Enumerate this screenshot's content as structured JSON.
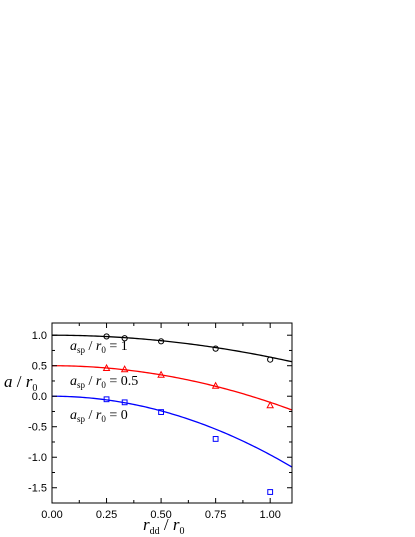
{
  "chart_data": {
    "type": "scatter",
    "x_axis": {
      "label_main": "r",
      "label_sub": "dd",
      "label_sep": " / ",
      "label_den": "r",
      "label_den_sub": "0",
      "range": [
        0.0,
        1.1
      ],
      "ticks": [
        "0.00",
        "0.25",
        "0.50",
        "0.75",
        "1.00"
      ]
    },
    "y_axis": {
      "label_main": "a",
      "label_sep": " / ",
      "label_den": "r",
      "label_den_sub": "0",
      "range": [
        -1.75,
        1.2
      ],
      "ticks": [
        "1.0",
        "0.5",
        "0.0",
        "-0.5",
        "-1.0",
        "-1.5"
      ]
    },
    "grid": false,
    "series": [
      {
        "name": "a_sp / r_0 = 1",
        "color": "#000000",
        "marker": "circle",
        "x": [
          0.25,
          0.333,
          0.5,
          0.75,
          1.0
        ],
        "y": [
          0.98,
          0.95,
          0.9,
          0.78,
          0.6
        ],
        "fit_coeffs": [
          1.0,
          0.0,
          -0.36
        ]
      },
      {
        "name": "a_sp / r_0 = 0.5",
        "color": "#ff0000",
        "marker": "triangle",
        "x": [
          0.25,
          0.333,
          0.5,
          0.75,
          1.0
        ],
        "y": [
          0.46,
          0.44,
          0.35,
          0.17,
          -0.15
        ],
        "fit_coeffs": [
          0.5,
          0.0,
          -0.6
        ]
      },
      {
        "name": "a_sp / r_0 = 0",
        "color": "#0000ff",
        "marker": "square",
        "x": [
          0.25,
          0.333,
          0.5,
          0.75,
          1.0
        ],
        "y": [
          -0.05,
          -0.1,
          -0.26,
          -0.7,
          -1.57
        ],
        "fit_coeffs": [
          0.0,
          0.0,
          -0.96
        ]
      }
    ],
    "annotations": [
      {
        "var": "a",
        "sub": "sp",
        "sep": " / ",
        "den": "r",
        "den_sub": "0",
        "eq": " = 1"
      },
      {
        "var": "a",
        "sub": "sp",
        "sep": " / ",
        "den": "r",
        "den_sub": "0",
        "eq": " = 0.5"
      },
      {
        "var": "a",
        "sub": "sp",
        "sep": " / ",
        "den": "r",
        "den_sub": "0",
        "eq": " = 0"
      }
    ]
  }
}
